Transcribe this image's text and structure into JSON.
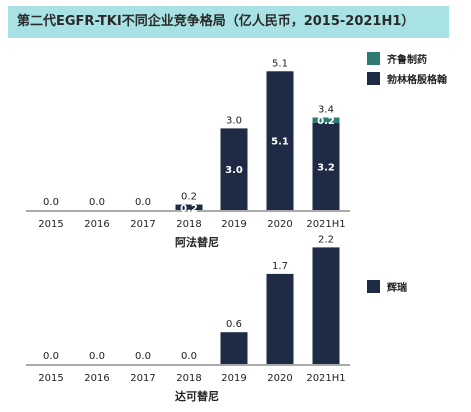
{
  "title": "第二代EGFR-TKI不同企业竞争格局（亿人民币，2015-2021H1）",
  "colors": {
    "navy": "#1f2a44",
    "teal": "#2e7b73",
    "axis": "#555555",
    "text": "#222222",
    "title_bg": "#a9e2e4"
  },
  "chart_data": [
    {
      "type": "bar",
      "stacked": true,
      "drug_label": "阿法替尼",
      "categories": [
        "2015",
        "2016",
        "2017",
        "2018",
        "2019",
        "2020",
        "2021H1"
      ],
      "series": [
        {
          "name": "勃林格殷格翰",
          "color": "#1f2a44",
          "values": [
            0.0,
            0.0,
            0.0,
            0.2,
            3.0,
            5.1,
            3.2
          ]
        },
        {
          "name": "齐鲁制药",
          "color": "#2e7b73",
          "values": [
            0.0,
            0.0,
            0.0,
            0.0,
            0.0,
            0.0,
            0.2
          ]
        }
      ],
      "totals": [
        0.0,
        0.0,
        0.0,
        0.2,
        3.0,
        5.1,
        3.4
      ],
      "legend": [
        {
          "name": "齐鲁制药",
          "color": "#2e7b73"
        },
        {
          "name": "勃林格殷格翰",
          "color": "#1f2a44"
        }
      ]
    },
    {
      "type": "bar",
      "stacked": false,
      "drug_label": "达可替尼",
      "categories": [
        "2015",
        "2016",
        "2017",
        "2018",
        "2019",
        "2020",
        "2021H1"
      ],
      "series": [
        {
          "name": "辉瑞",
          "color": "#1f2a44",
          "values": [
            0.0,
            0.0,
            0.0,
            0.0,
            0.6,
            1.7,
            2.2
          ]
        }
      ],
      "totals": [
        0.0,
        0.0,
        0.0,
        0.0,
        0.6,
        1.7,
        2.2
      ],
      "legend": [
        {
          "name": "辉瑞",
          "color": "#1f2a44"
        }
      ]
    }
  ]
}
